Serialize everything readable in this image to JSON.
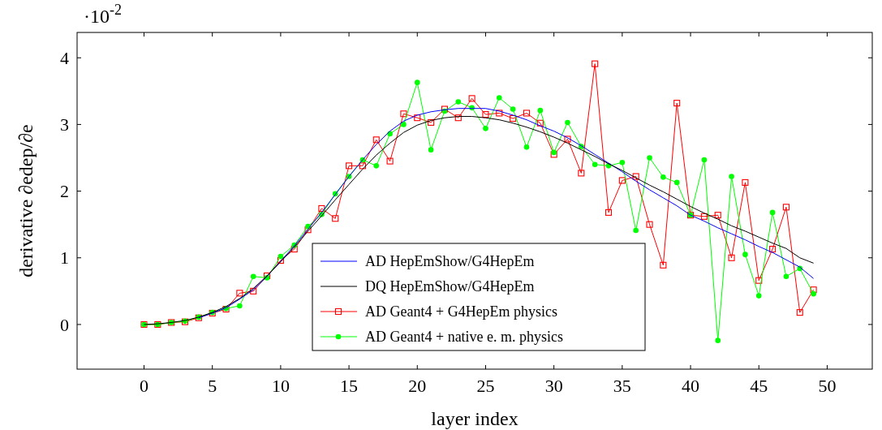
{
  "chart_data": {
    "type": "line",
    "xlabel": "layer index",
    "ylabel": "derivative ∂edep/∂e",
    "annotations": [
      "·10$^{-2}$"
    ],
    "x": [
      0,
      1,
      2,
      3,
      4,
      5,
      6,
      7,
      8,
      9,
      10,
      11,
      12,
      13,
      14,
      15,
      16,
      17,
      18,
      19,
      20,
      21,
      22,
      23,
      24,
      25,
      26,
      27,
      28,
      29,
      30,
      31,
      32,
      33,
      34,
      35,
      36,
      37,
      38,
      39,
      40,
      41,
      42,
      43,
      44,
      45,
      46,
      47,
      48,
      49
    ],
    "xlim": [
      -4.9,
      53.3
    ],
    "xticks": [
      0,
      5,
      10,
      15,
      20,
      25,
      30,
      35,
      40,
      45,
      50
    ],
    "ylim": [
      -0.67,
      4.38
    ],
    "yticks": [
      0,
      1,
      2,
      3,
      4
    ],
    "grid": false,
    "legend": "bottom",
    "series": [
      {
        "name": "AD HepEmShow/G4HepEm",
        "color": "#0000ff",
        "marker": "none",
        "values": [
          null,
          null,
          null,
          null,
          0.1,
          0.17,
          0.25,
          0.38,
          0.52,
          0.72,
          0.95,
          1.18,
          1.43,
          1.68,
          1.95,
          2.22,
          2.47,
          2.7,
          2.9,
          3.05,
          3.14,
          3.19,
          3.22,
          3.24,
          3.24,
          3.24,
          3.2,
          3.14,
          3.07,
          2.98,
          2.9,
          2.8,
          2.68,
          2.55,
          2.42,
          2.29,
          2.15,
          2.02,
          1.9,
          1.78,
          1.64,
          1.55,
          1.45,
          1.36,
          1.27,
          1.17,
          1.08,
          0.97,
          0.86,
          0.69
        ]
      },
      {
        "name": "DQ HepEmShow/G4HepEm",
        "color": "#000000",
        "marker": "none",
        "values": [
          0,
          0.01,
          0.03,
          0.06,
          0.11,
          0.18,
          0.27,
          0.39,
          0.54,
          0.73,
          0.94,
          1.16,
          1.4,
          1.63,
          1.87,
          2.1,
          2.33,
          2.54,
          2.72,
          2.88,
          2.99,
          3.06,
          3.1,
          3.12,
          3.12,
          3.1,
          3.07,
          3.02,
          2.96,
          2.89,
          2.81,
          2.72,
          2.62,
          2.52,
          2.41,
          2.31,
          2.2,
          2.09,
          1.99,
          1.88,
          1.77,
          1.67,
          1.58,
          1.48,
          1.4,
          1.31,
          1.22,
          1.14,
          1.0,
          0.92
        ]
      },
      {
        "name": "AD Geant4 + G4HepEm physics",
        "color": "#ff0000",
        "marker": "square",
        "values": [
          0,
          0,
          0.03,
          0.04,
          0.1,
          0.17,
          0.23,
          0.47,
          0.5,
          0.73,
          0.96,
          1.13,
          1.42,
          1.74,
          1.59,
          2.38,
          2.38,
          2.77,
          2.45,
          3.16,
          3.1,
          3.03,
          3.23,
          3.1,
          3.39,
          3.15,
          3.17,
          3.09,
          3.17,
          3.02,
          2.55,
          2.78,
          2.27,
          3.91,
          1.68,
          2.16,
          2.22,
          1.5,
          0.89,
          3.32,
          1.64,
          1.62,
          1.64,
          1.0,
          2.13,
          0.66,
          1.13,
          1.76,
          0.18,
          0.52
        ]
      },
      {
        "name": "AD Geant4 + native e. m. physics",
        "color": "#00ff00",
        "marker": "circle",
        "values": [
          0,
          0,
          0.03,
          0.05,
          0.11,
          0.18,
          0.24,
          0.28,
          0.72,
          0.7,
          1.02,
          1.19,
          1.47,
          1.65,
          1.96,
          2.22,
          2.47,
          2.38,
          2.86,
          3.0,
          3.63,
          2.62,
          3.2,
          3.34,
          3.25,
          2.94,
          3.4,
          3.23,
          2.66,
          3.21,
          2.58,
          3.03,
          2.67,
          2.4,
          2.38,
          2.43,
          1.41,
          2.5,
          2.21,
          2.13,
          1.64,
          2.47,
          -0.24,
          2.22,
          1.05,
          0.43,
          1.68,
          0.72,
          0.84,
          0.46
        ]
      }
    ]
  }
}
